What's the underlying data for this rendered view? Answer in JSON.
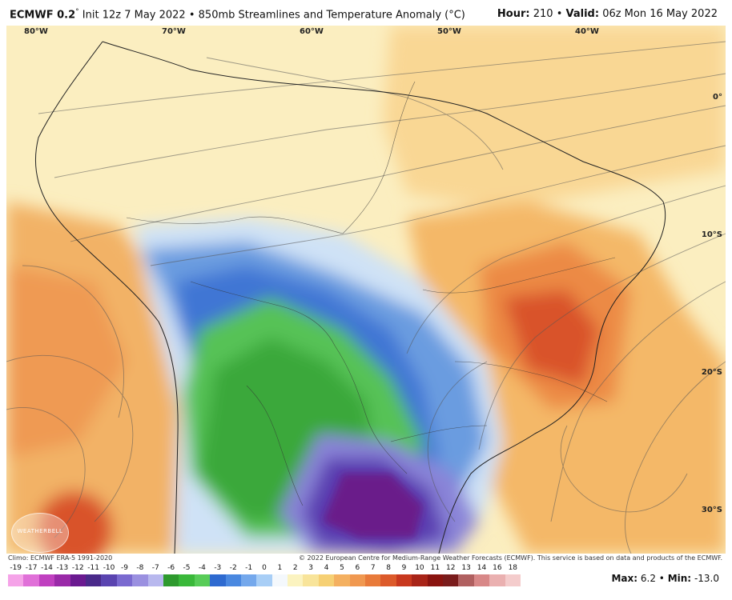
{
  "header": {
    "model": "ECMWF 0.2",
    "degree": "°",
    "init": "Init 12z 7 May 2022",
    "bullet": "•",
    "product": "850mb Streamlines and Temperature Anomaly (°C)",
    "hour_label": "Hour:",
    "hour_value": "210",
    "valid_label": "Valid:",
    "valid_value": "06z Mon 16 May 2022"
  },
  "map": {
    "longitude_labels": [
      "80°W",
      "70°W",
      "60°W",
      "50°W",
      "40°W"
    ],
    "latitude_labels": [
      "0°",
      "10°S",
      "20°S",
      "30°S"
    ],
    "logo_text": "WEATHERBELL"
  },
  "footer": {
    "climo": "Climo: ECMWF ERA-5 1991-2020",
    "copyright": "© 2022 European Centre for Medium-Range Weather Forecasts (ECMWF). This service is based on data and products of the ECMWF.",
    "max_label": "Max:",
    "max_value": "6.2",
    "min_label": "Min:",
    "min_value": "-13.0"
  },
  "colorbar": {
    "labels": [
      "-19",
      "-17",
      "-14",
      "-13",
      "-12",
      "-11",
      "-10",
      "-9",
      "-8",
      "-7",
      "-6",
      "-5",
      "-4",
      "-3",
      "-2",
      "-1",
      "0",
      "1",
      "2",
      "3",
      "4",
      "5",
      "6",
      "7",
      "8",
      "9",
      "10",
      "11",
      "12",
      "13",
      "14",
      "16",
      "18"
    ],
    "colors": [
      "#f5a3e8",
      "#e070d8",
      "#c040c0",
      "#9a2aa8",
      "#6a1a90",
      "#4a2a8a",
      "#5a44b0",
      "#7a6ad0",
      "#9a90e0",
      "#b8b8ee",
      "#2e9a2e",
      "#3ab83a",
      "#58cc58",
      "#2e6ad0",
      "#4a88e0",
      "#74a8ec",
      "#a8cef6",
      "#f4f8fc",
      "#fbf3c0",
      "#f8e49a",
      "#f6d074",
      "#f4b060",
      "#f09850",
      "#e87a3a",
      "#dc5a2a",
      "#c8381e",
      "#a82418",
      "#8a1410",
      "#7a1c1c",
      "#b06060",
      "#d88888",
      "#eab0b0",
      "#f4cccc"
    ]
  }
}
